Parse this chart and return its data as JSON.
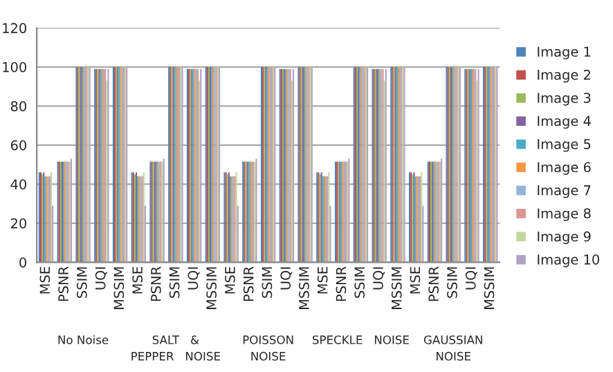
{
  "chart_data": {
    "type": "bar",
    "categories": [
      "MSE",
      "PSNR",
      "SSIM",
      "UQI",
      "MSSIM",
      "MSE",
      "PSNR",
      "SSIM",
      "UQI",
      "MSSIM",
      "MSE",
      "PSNR",
      "SSIM",
      "UQI",
      "MSSIM",
      "MSE",
      "PSNR",
      "SSIM",
      "UQI",
      "MSSIM",
      "MSE",
      "PSNR",
      "SSIM",
      "UQI",
      "MSSIM"
    ],
    "series": [
      {
        "name": "Image 1",
        "color": "#4f81bd",
        "values": [
          46,
          51.5,
          100,
          99,
          100,
          46,
          51.5,
          100,
          99,
          100,
          46,
          51.5,
          100,
          99,
          100,
          46,
          51.5,
          100,
          99,
          100,
          46,
          51.5,
          100,
          99,
          100
        ]
      },
      {
        "name": "Image 2",
        "color": "#c0504d",
        "values": [
          46,
          51.5,
          100,
          99,
          100,
          46,
          51.5,
          100,
          99,
          100,
          46,
          51.5,
          100,
          99,
          100,
          46,
          51.5,
          100,
          99,
          100,
          46,
          51.5,
          100,
          99,
          100
        ]
      },
      {
        "name": "Image 3",
        "color": "#9bbb59",
        "values": [
          45,
          51.5,
          100,
          99,
          100,
          45,
          51.5,
          100,
          99,
          100,
          45,
          51.5,
          100,
          99,
          100,
          45,
          51.5,
          100,
          99,
          100,
          45,
          51.5,
          100,
          99,
          100
        ]
      },
      {
        "name": "Image 4",
        "color": "#8064a2",
        "values": [
          46,
          51.5,
          100,
          99,
          100,
          46,
          51.5,
          100,
          99,
          100,
          46,
          51.5,
          100,
          99,
          100,
          46,
          51.5,
          100,
          99,
          100,
          46,
          51.5,
          100,
          99,
          100
        ]
      },
      {
        "name": "Image 5",
        "color": "#4bacc6",
        "values": [
          44,
          51.5,
          100,
          99,
          100,
          44,
          51.5,
          100,
          99,
          100,
          44,
          51.5,
          100,
          99,
          100,
          44,
          51.5,
          100,
          99,
          100,
          44,
          51.5,
          100,
          99,
          100
        ]
      },
      {
        "name": "Image 6",
        "color": "#f79646",
        "values": [
          44,
          51.5,
          100,
          99,
          100,
          44,
          51.5,
          100,
          99,
          100,
          44,
          51.5,
          100,
          99,
          100,
          44,
          51.5,
          100,
          99,
          100,
          44,
          51.5,
          100,
          99,
          100
        ]
      },
      {
        "name": "Image 7",
        "color": "#95b3d7",
        "values": [
          44,
          51.5,
          100,
          99,
          100,
          44,
          51.5,
          100,
          99,
          100,
          44,
          51.5,
          100,
          99,
          100,
          44,
          51.5,
          100,
          99,
          100,
          44,
          51.5,
          100,
          99,
          100
        ]
      },
      {
        "name": "Image 8",
        "color": "#d99694",
        "values": [
          44,
          51.5,
          100,
          99,
          100,
          44,
          51.5,
          100,
          99,
          100,
          44,
          51.5,
          100,
          99,
          100,
          44,
          51.5,
          100,
          99,
          100,
          44,
          51.5,
          100,
          99,
          100
        ]
      },
      {
        "name": "Image 9",
        "color": "#c3d69b",
        "values": [
          46,
          51.5,
          100,
          93,
          100,
          46,
          51.5,
          100,
          93,
          100,
          46,
          51.5,
          100,
          93,
          100,
          46,
          51.5,
          100,
          93,
          100,
          46,
          51.5,
          100,
          93,
          100
        ]
      },
      {
        "name": "Image 10",
        "color": "#b2a2c7",
        "values": [
          29,
          53,
          100,
          99,
          100,
          29,
          53,
          100,
          99,
          100,
          29,
          53,
          100,
          99,
          100,
          29,
          53,
          100,
          99,
          100,
          29,
          53,
          100,
          99,
          100
        ]
      }
    ],
    "annotations": [
      "No Noise",
      "SALT   &\nPEPPER   NOISE",
      "POISSON\nNOISE",
      "SPECKLE   NOISE",
      "GAUSSIAN\nNOISE"
    ],
    "ylim": [
      0,
      120
    ],
    "yticks": [
      0,
      20,
      40,
      60,
      80,
      100,
      120
    ],
    "grid": "y",
    "legend": "right"
  }
}
